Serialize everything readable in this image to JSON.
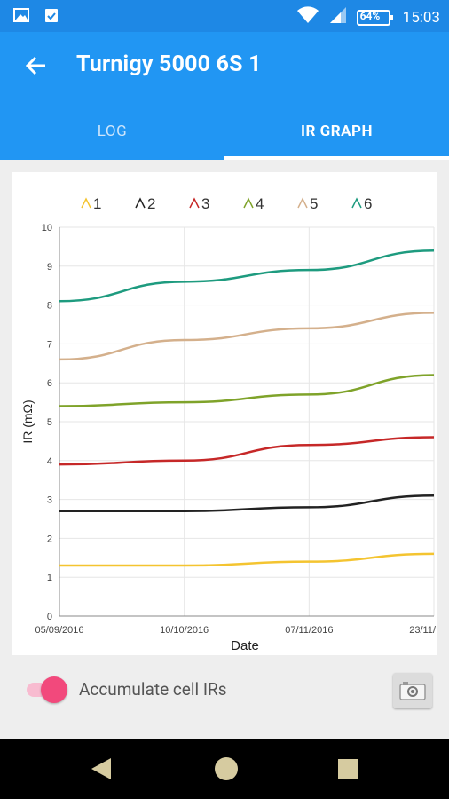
{
  "status_bar": {
    "battery": "64%",
    "time": "15:03",
    "icons": [
      "gallery-icon",
      "clipboard-check-icon",
      "wifi-icon",
      "signal-icon",
      "battery-icon"
    ]
  },
  "app_bar": {
    "title": "Turnigy 5000 6S 1",
    "back_icon": "arrow-back-icon",
    "color": "#2196f3"
  },
  "tabs": [
    {
      "label": "LOG",
      "active": false
    },
    {
      "label": "IR GRAPH",
      "active": true
    }
  ],
  "chart_data": {
    "type": "line",
    "xlabel": "Date",
    "ylabel": "IR (mΩ)",
    "x": [
      "05/09/2016",
      "10/10/2016",
      "07/11/2016",
      "23/11/"
    ],
    "ylim": [
      0,
      10
    ],
    "yticks": [
      "0",
      "1",
      "2",
      "3",
      "4",
      "5",
      "6",
      "7",
      "8",
      "9",
      "10"
    ],
    "grid": true,
    "legend_position": "top",
    "series": [
      {
        "name": "1",
        "values": [
          1.3,
          1.3,
          1.4,
          1.6
        ],
        "color": "#f4c430"
      },
      {
        "name": "2",
        "values": [
          2.7,
          2.7,
          2.8,
          3.1
        ],
        "color": "#222222"
      },
      {
        "name": "3",
        "values": [
          3.9,
          4.0,
          4.4,
          4.6
        ],
        "color": "#c62828"
      },
      {
        "name": "4",
        "values": [
          5.4,
          5.5,
          5.7,
          6.2
        ],
        "color": "#7fa32a"
      },
      {
        "name": "5",
        "values": [
          6.6,
          7.1,
          7.4,
          7.8
        ],
        "color": "#d4b08c"
      },
      {
        "name": "6",
        "values": [
          8.1,
          8.6,
          8.9,
          9.4
        ],
        "color": "#1e9b7f"
      }
    ]
  },
  "controls": {
    "toggle_label": "Accumulate cell IRs",
    "toggle_on": true,
    "camera_icon": "camera-icon"
  },
  "nav_bar": {
    "icons": [
      "back-triangle-icon",
      "home-circle-icon",
      "recents-square-icon"
    ]
  }
}
